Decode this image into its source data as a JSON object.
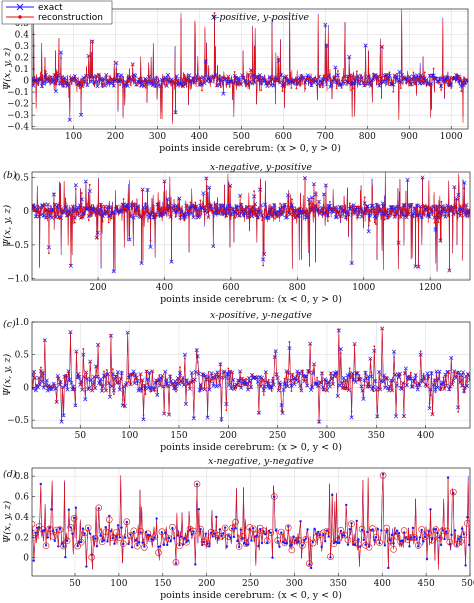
{
  "legend": {
    "exact": "exact",
    "reconstruction": "reconstruction"
  },
  "colors": {
    "exact": "#1a1aff",
    "reconstruction": "#e01010",
    "grid": "#d8d8d8"
  },
  "chart_data": [
    {
      "type": "line",
      "panel": "(a)",
      "title": "x-positive, y-positive",
      "xlabel": "points inside cerebrum: (x > 0, y > 0)",
      "ylabel": "Ψ(x, y, z)",
      "xlim": [
        1,
        1040
      ],
      "ylim": [
        -0.42,
        0.62
      ],
      "xticks": [
        100,
        200,
        300,
        400,
        500,
        600,
        700,
        800,
        900,
        1000
      ],
      "yticks": [
        -0.4,
        -0.3,
        -0.2,
        -0.1,
        0,
        0.1,
        0.2,
        0.3,
        0.4,
        0.5,
        0.6
      ],
      "ytick_labels": [
        "−0.4",
        "−0.3",
        "−0.2",
        "−0.1",
        "0",
        "0.1",
        "0.2",
        "0.3",
        "0.4",
        "0.5",
        "0.6"
      ],
      "grid": true,
      "legend_position": "top-left",
      "n_points": 1040,
      "value_profile": {
        "baseline": 0.0,
        "noise": 0.05,
        "spike_prob": 0.08,
        "spike_max": 0.6,
        "dip_max": 0.4
      },
      "series": [
        {
          "name": "exact",
          "marker": "x"
        },
        {
          "name": "reconstruction",
          "marker": "dot"
        }
      ]
    },
    {
      "type": "line",
      "panel": "(b)",
      "title": "x-negative, y-positive",
      "xlabel": "points inside cerebrum: (x < 0, y > 0)",
      "ylabel": "Ψ(x, y, z)",
      "xlim": [
        1,
        1320
      ],
      "ylim": [
        -1.02,
        0.58
      ],
      "xticks": [
        200,
        400,
        600,
        800,
        1000,
        1200
      ],
      "yticks": [
        -1.0,
        -0.5,
        0,
        0.5
      ],
      "ytick_labels": [
        "−1.0",
        "−0.5",
        "0",
        "0.5"
      ],
      "grid": true,
      "n_points": 1320,
      "value_profile": {
        "baseline": 0.0,
        "noise": 0.1,
        "spike_prob": 0.1,
        "spike_max": 0.5,
        "dip_max": 1.0
      },
      "series": [
        {
          "name": "exact",
          "marker": "x"
        },
        {
          "name": "reconstruction",
          "marker": "dot"
        }
      ]
    },
    {
      "type": "line",
      "panel": "(c)",
      "title": "x-positive, y-negative",
      "xlabel": "points inside cerebrum: (x > 0, y < 0)",
      "ylabel": "Ψ(x, y, z)",
      "xlim": [
        1,
        445
      ],
      "ylim": [
        -0.62,
        1.0
      ],
      "xticks": [
        50,
        100,
        150,
        200,
        250,
        300,
        350,
        400
      ],
      "yticks": [
        -0.5,
        0,
        0.5,
        1.0
      ],
      "ytick_labels": [
        "−0.5",
        "0",
        "0.5",
        "1.0"
      ],
      "grid": true,
      "n_points": 445,
      "value_profile": {
        "baseline": 0.1,
        "noise": 0.15,
        "spike_prob": 0.12,
        "spike_max": 0.95,
        "dip_max": 0.6
      },
      "series": [
        {
          "name": "exact",
          "marker": "x"
        },
        {
          "name": "reconstruction",
          "marker": "dot"
        }
      ]
    },
    {
      "type": "line",
      "panel": "(d)",
      "title": "x-negative, y-negative",
      "xlabel": "points inside cerebrum: (x < 0, y < 0)",
      "ylabel": "Ψ(x, y, z)",
      "xlim": [
        1,
        500
      ],
      "ylim": [
        -0.18,
        0.88
      ],
      "xticks": [
        50,
        100,
        150,
        200,
        250,
        300,
        350,
        400,
        450,
        500
      ],
      "yticks": [
        0,
        0.2,
        0.4,
        0.6,
        0.8
      ],
      "ytick_labels": [
        "0",
        "0.2",
        "0.4",
        "0.6",
        "0.8"
      ],
      "grid": true,
      "n_points": 500,
      "value_profile": {
        "baseline": 0.2,
        "noise": 0.1,
        "spike_prob": 0.14,
        "spike_max": 0.85,
        "dip_max": 0.15
      },
      "series": [
        {
          "name": "exact",
          "marker": "dot"
        },
        {
          "name": "reconstruction",
          "marker": "circle"
        }
      ]
    }
  ]
}
